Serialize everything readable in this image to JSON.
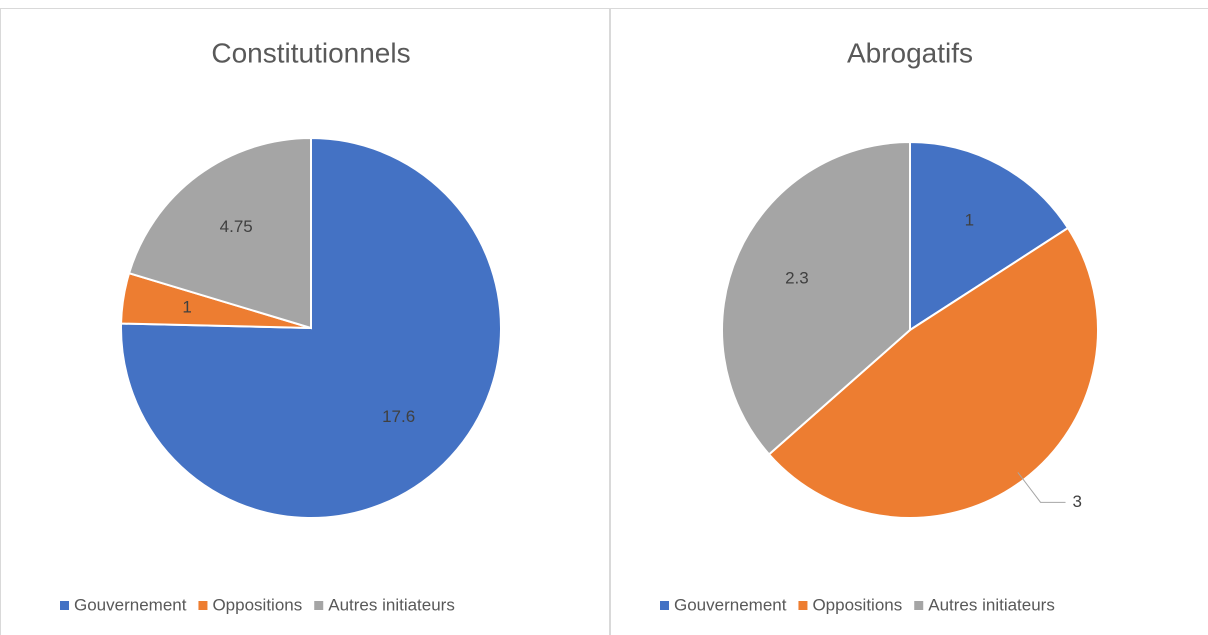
{
  "chart_data": [
    {
      "type": "pie",
      "title": "Constitutionnels",
      "categories": [
        "Gouvernement",
        "Oppositions",
        "Autres initiateurs"
      ],
      "values": [
        17.6,
        1,
        4.75
      ],
      "colors": [
        "#4472c4",
        "#ed7d31",
        "#a5a5a5"
      ]
    },
    {
      "type": "pie",
      "title": "Abrogatifs",
      "categories": [
        "Gouvernement",
        "Oppositions",
        "Autres initiateurs"
      ],
      "values": [
        1,
        3,
        2.3
      ],
      "colors": [
        "#4472c4",
        "#ed7d31",
        "#a5a5a5"
      ]
    }
  ]
}
